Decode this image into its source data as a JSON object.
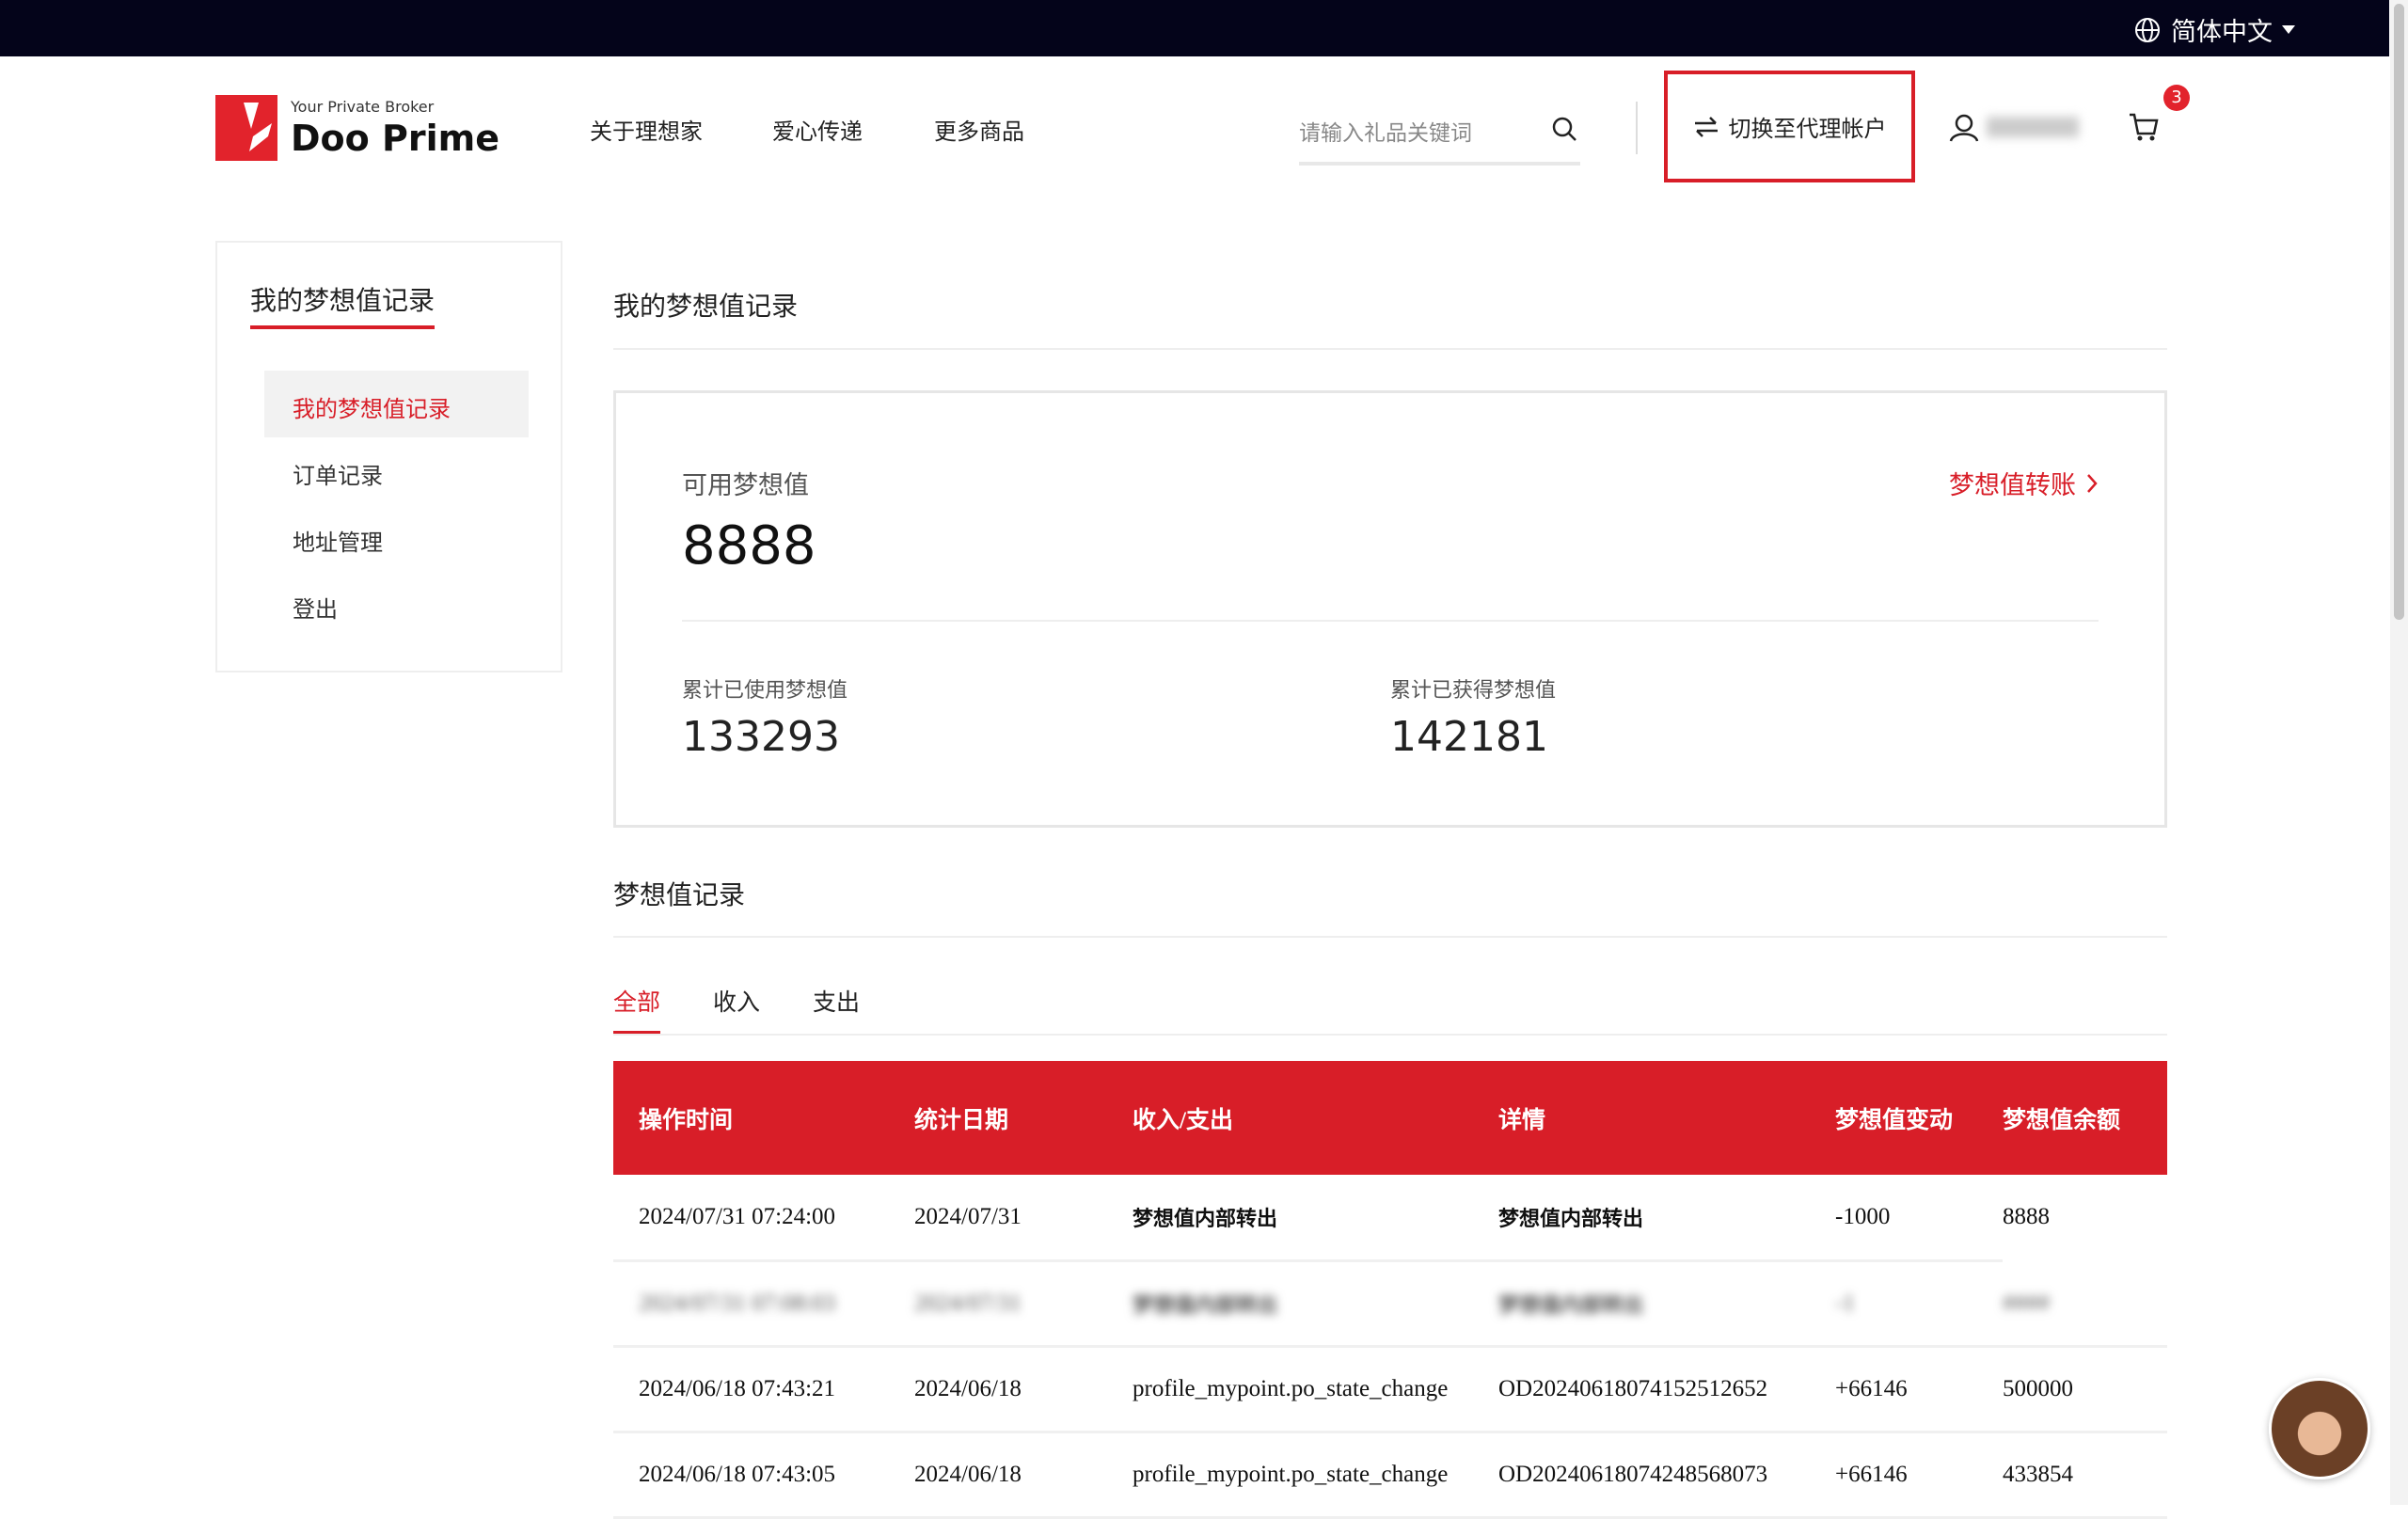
{
  "topbar": {
    "language": "简体中文"
  },
  "brand": {
    "tagline": "Your Private Broker",
    "name": "Doo Prime",
    "color": "#e2232c"
  },
  "nav": [
    "关于理想家",
    "爱心传递",
    "更多商品"
  ],
  "search": {
    "placeholder": "请输入礼品关键词"
  },
  "switch_account": "切换至代理帐户",
  "cart": {
    "badge": "3"
  },
  "sidebar": {
    "title": "我的梦想值记录",
    "items": [
      {
        "label": "我的梦想值记录",
        "active": true
      },
      {
        "label": "订单记录"
      },
      {
        "label": "地址管理"
      },
      {
        "label": "登出"
      }
    ]
  },
  "main": {
    "title": "我的梦想值记录",
    "available_label": "可用梦想值",
    "available": "8888",
    "transfer_link": "梦想值转账",
    "used_label": "累计已使用梦想值",
    "used": "133293",
    "earned_label": "累计已获得梦想值",
    "earned": "142181",
    "records_title": "梦想值记录",
    "tabs": [
      "全部",
      "收入",
      "支出"
    ],
    "columns": [
      "操作时间",
      "统计日期",
      "收入/支出",
      "详情",
      "梦想值变动",
      "梦想值余额"
    ],
    "rows": [
      [
        "2024/07/31 07:24:00",
        "2024/07/31",
        "梦想值内部转出",
        "梦想值内部转出",
        "-1000",
        "8888"
      ],
      [
        "2024/07/31 07:08:03",
        "2024/07/31",
        "梦想值内部转出",
        "梦想值内部转出",
        "-1",
        "####"
      ],
      [
        "2024/06/18 07:43:21",
        "2024/06/18",
        "profile_mypoint.po_state_change",
        "OD20240618074152512652",
        "+66146",
        "500000"
      ],
      [
        "2024/06/18 07:43:05",
        "2024/06/18",
        "profile_mypoint.po_state_change",
        "OD20240618074248568073",
        "+66146",
        "433854"
      ]
    ]
  },
  "accent": "#d81e28"
}
